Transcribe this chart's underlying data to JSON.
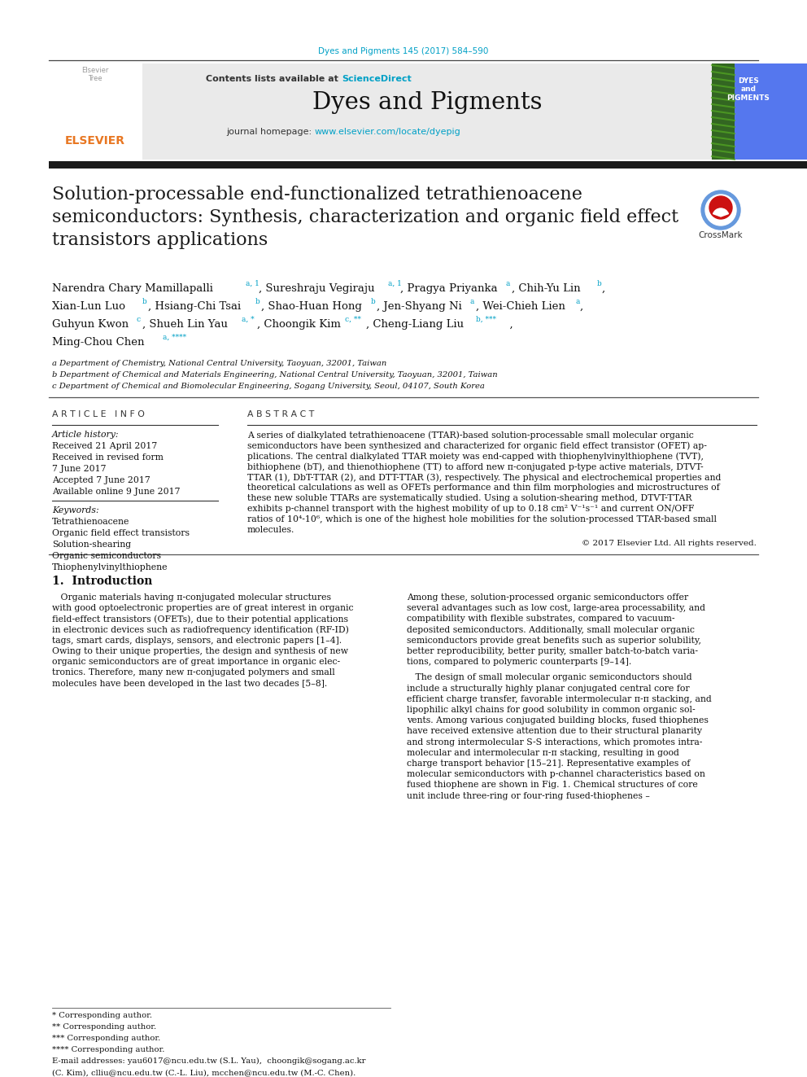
{
  "page_title": "Dyes and Pigments 145 (2017) 584–590",
  "journal_name": "Dyes and Pigments",
  "sciencedirect_color": "#00A0C6",
  "homepage_url_color": "#00A0C6",
  "affil_a": "a Department of Chemistry, National Central University, Taoyuan, 32001, Taiwan",
  "affil_b": "b Department of Chemical and Materials Engineering, National Central University, Taoyuan, 32001, Taiwan",
  "affil_c": "c Department of Chemical and Biomolecular Engineering, Sogang University, Seoul, 04107, South Korea",
  "keywords": [
    "Tetrathienoacene",
    "Organic field effect transistors",
    "Solution-shearing",
    "Organic semiconductors",
    "Thiophenylvinylthiophene"
  ],
  "abstract_lines": [
    "A series of dialkylated tetrathienoacene (TTAR)-based solution-processable small molecular organic",
    "semiconductors have been synthesized and characterized for organic field effect transistor (OFET) ap-",
    "plications. The central dialkylated TTAR moiety was end-capped with thiophenylvinylthiophene (TVT),",
    "bithiophene (bT), and thienothiophene (TT) to afford new π-conjugated p-type active materials, DTVT-",
    "TTAR (1), DbT-TTAR (2), and DTT-TTAR (3), respectively. The physical and electrochemical properties and",
    "theoretical calculations as well as OFETs performance and thin film morphologies and microstructures of",
    "these new soluble TTARs are systematically studied. Using a solution-shearing method, DTVT-TTAR",
    "exhibits p-channel transport with the highest mobility of up to 0.18 cm² V⁻¹s⁻¹ and current ON/OFF",
    "ratios of 10⁴-10⁶, which is one of the highest hole mobilities for the solution-processed TTAR-based small",
    "molecules."
  ],
  "intro_left_lines": [
    "   Organic materials having π-conjugated molecular structures",
    "with good optoelectronic properties are of great interest in organic",
    "field-effect transistors (OFETs), due to their potential applications",
    "in electronic devices such as radiofrequency identification (RF-ID)",
    "tags, smart cards, displays, sensors, and electronic papers [1–4].",
    "Owing to their unique properties, the design and synthesis of new",
    "organic semiconductors are of great importance in organic elec-",
    "tronics. Therefore, many new π-conjugated polymers and small",
    "molecules have been developed in the last two decades [5–8]."
  ],
  "intro_right_lines": [
    "Among these, solution-processed organic semiconductors offer",
    "several advantages such as low cost, large-area processability, and",
    "compatibility with flexible substrates, compared to vacuum-",
    "deposited semiconductors. Additionally, small molecular organic",
    "semiconductors provide great benefits such as superior solubility,",
    "better reproducibility, better purity, smaller batch-to-batch varia-",
    "tions, compared to polymeric counterparts [9–14]."
  ],
  "design_lines": [
    "   The design of small molecular organic semiconductors should",
    "include a structurally highly planar conjugated central core for",
    "efficient charge transfer, favorable intermolecular π-π stacking, and",
    "lipophilic alkyl chains for good solubility in common organic sol-",
    "vents. Among various conjugated building blocks, fused thiophenes",
    "have received extensive attention due to their structural planarity",
    "and strong intermolecular S-S interactions, which promotes intra-",
    "molecular and intermolecular π-π stacking, resulting in good",
    "charge transport behavior [15–21]. Representative examples of",
    "molecular semiconductors with p-channel characteristics based on",
    "fused thiophene are shown in Fig. 1. Chemical structures of core",
    "unit include three-ring or four-ring fused-thiophenes –"
  ],
  "thick_bar_color": "#1A1A1A",
  "page_bg": "#FFFFFF",
  "journal_header_bg": "#EAEAEA",
  "title_color": "#1A1A1A",
  "page_title_color": "#00A0C6",
  "author_super_color": "#00A0C6",
  "elsevier_color": "#E87722",
  "cover_bg": "#5577EE",
  "cover_left_bg": "#44AA44"
}
